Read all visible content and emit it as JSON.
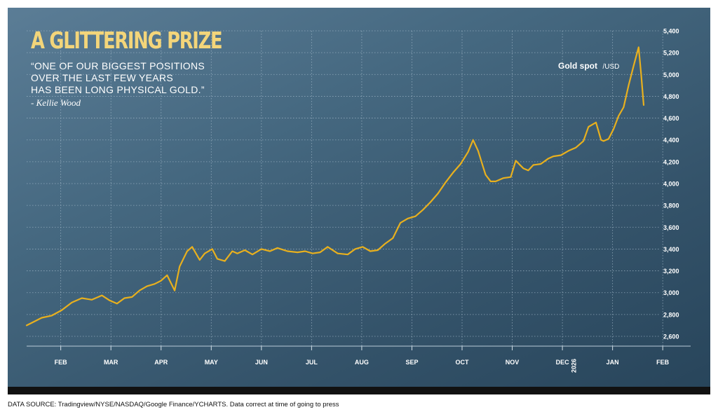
{
  "title": "A GLITTERING PRIZE",
  "quote_lines": [
    "“ONE OF OUR BIGGEST POSITIONS",
    "OVER THE LAST FEW YEARS",
    "HAS BEEN LONG PHYSICAL GOLD.”"
  ],
  "author": "- Kellie Wood",
  "source": "DATA SOURCE: Tradingview/NYSE/NASDAQ/Google Finance/YCHARTS. Data correct at time of going to press",
  "colors": {
    "line": "#e8b01e",
    "grid": "#a9bfcf",
    "axis_text": "#ffffff"
  },
  "chart_data": {
    "type": "line",
    "title": "A GLITTERING PRIZE",
    "series_label": "Gold spot",
    "series_unit": "/USD",
    "ylim": [
      2540,
      5460
    ],
    "xlim": [
      0,
      12.3
    ],
    "yticks": [
      2600,
      2800,
      3000,
      3200,
      3400,
      3600,
      3800,
      4000,
      4200,
      4400,
      4600,
      4800,
      5000,
      5200,
      5400
    ],
    "ytick_labels": [
      "2,600",
      "2,800",
      "3,000",
      "3,200",
      "3,400",
      "3,600",
      "3,800",
      "4,000",
      "4,200",
      "4,400",
      "4,600",
      "4,800",
      "5,000",
      "5,200",
      "5,400"
    ],
    "xticks": [
      0.68,
      1.68,
      2.68,
      3.68,
      4.68,
      5.68,
      6.68,
      7.68,
      8.68,
      9.68,
      10.68,
      11.68,
      12.68
    ],
    "xtick_labels": [
      "FEB",
      "MAR",
      "APR",
      "MAY",
      "JUN",
      "JUL",
      "AUG",
      "SEP",
      "OCT",
      "NOV",
      "DEC",
      "JAN",
      "FEB"
    ],
    "year_label": "2026",
    "grid": true,
    "x": [
      0,
      0.15,
      0.3,
      0.5,
      0.7,
      0.9,
      1.1,
      1.3,
      1.5,
      1.65,
      1.8,
      1.95,
      2.1,
      2.25,
      2.4,
      2.55,
      2.68,
      2.8,
      2.95,
      3.05,
      3.2,
      3.3,
      3.45,
      3.55,
      3.7,
      3.8,
      3.95,
      4.1,
      4.2,
      4.35,
      4.5,
      4.68,
      4.85,
      5.0,
      5.2,
      5.4,
      5.55,
      5.7,
      5.85,
      6.0,
      6.2,
      6.4,
      6.55,
      6.7,
      6.85,
      7.0,
      7.15,
      7.3,
      7.45,
      7.6,
      7.75,
      7.9,
      8.05,
      8.2,
      8.35,
      8.5,
      8.65,
      8.8,
      8.9,
      9.0,
      9.1,
      9.15,
      9.25,
      9.35,
      9.5,
      9.65,
      9.75,
      9.9,
      10.0,
      10.1,
      10.25,
      10.4,
      10.5,
      10.65,
      10.8,
      10.95,
      11.1,
      11.2,
      11.35,
      11.45,
      11.5,
      11.6,
      11.7,
      11.8,
      11.9,
      12.0,
      12.1,
      12.2,
      12.25,
      12.3
    ],
    "values": [
      2700,
      2735,
      2770,
      2790,
      2840,
      2910,
      2950,
      2935,
      2975,
      2930,
      2900,
      2950,
      2960,
      3020,
      3060,
      3080,
      3110,
      3160,
      3020,
      3240,
      3380,
      3420,
      3300,
      3360,
      3400,
      3310,
      3290,
      3380,
      3360,
      3390,
      3350,
      3400,
      3380,
      3410,
      3380,
      3370,
      3380,
      3360,
      3370,
      3420,
      3360,
      3350,
      3400,
      3420,
      3380,
      3390,
      3450,
      3500,
      3640,
      3680,
      3700,
      3760,
      3830,
      3910,
      4010,
      4100,
      4180,
      4290,
      4400,
      4300,
      4150,
      4080,
      4020,
      4020,
      4050,
      4060,
      4210,
      4140,
      4120,
      4170,
      4180,
      4230,
      4250,
      4260,
      4300,
      4330,
      4390,
      4520,
      4560,
      4400,
      4390,
      4410,
      4500,
      4620,
      4700,
      4900,
      5080,
      5250,
      5000,
      4720
    ]
  }
}
